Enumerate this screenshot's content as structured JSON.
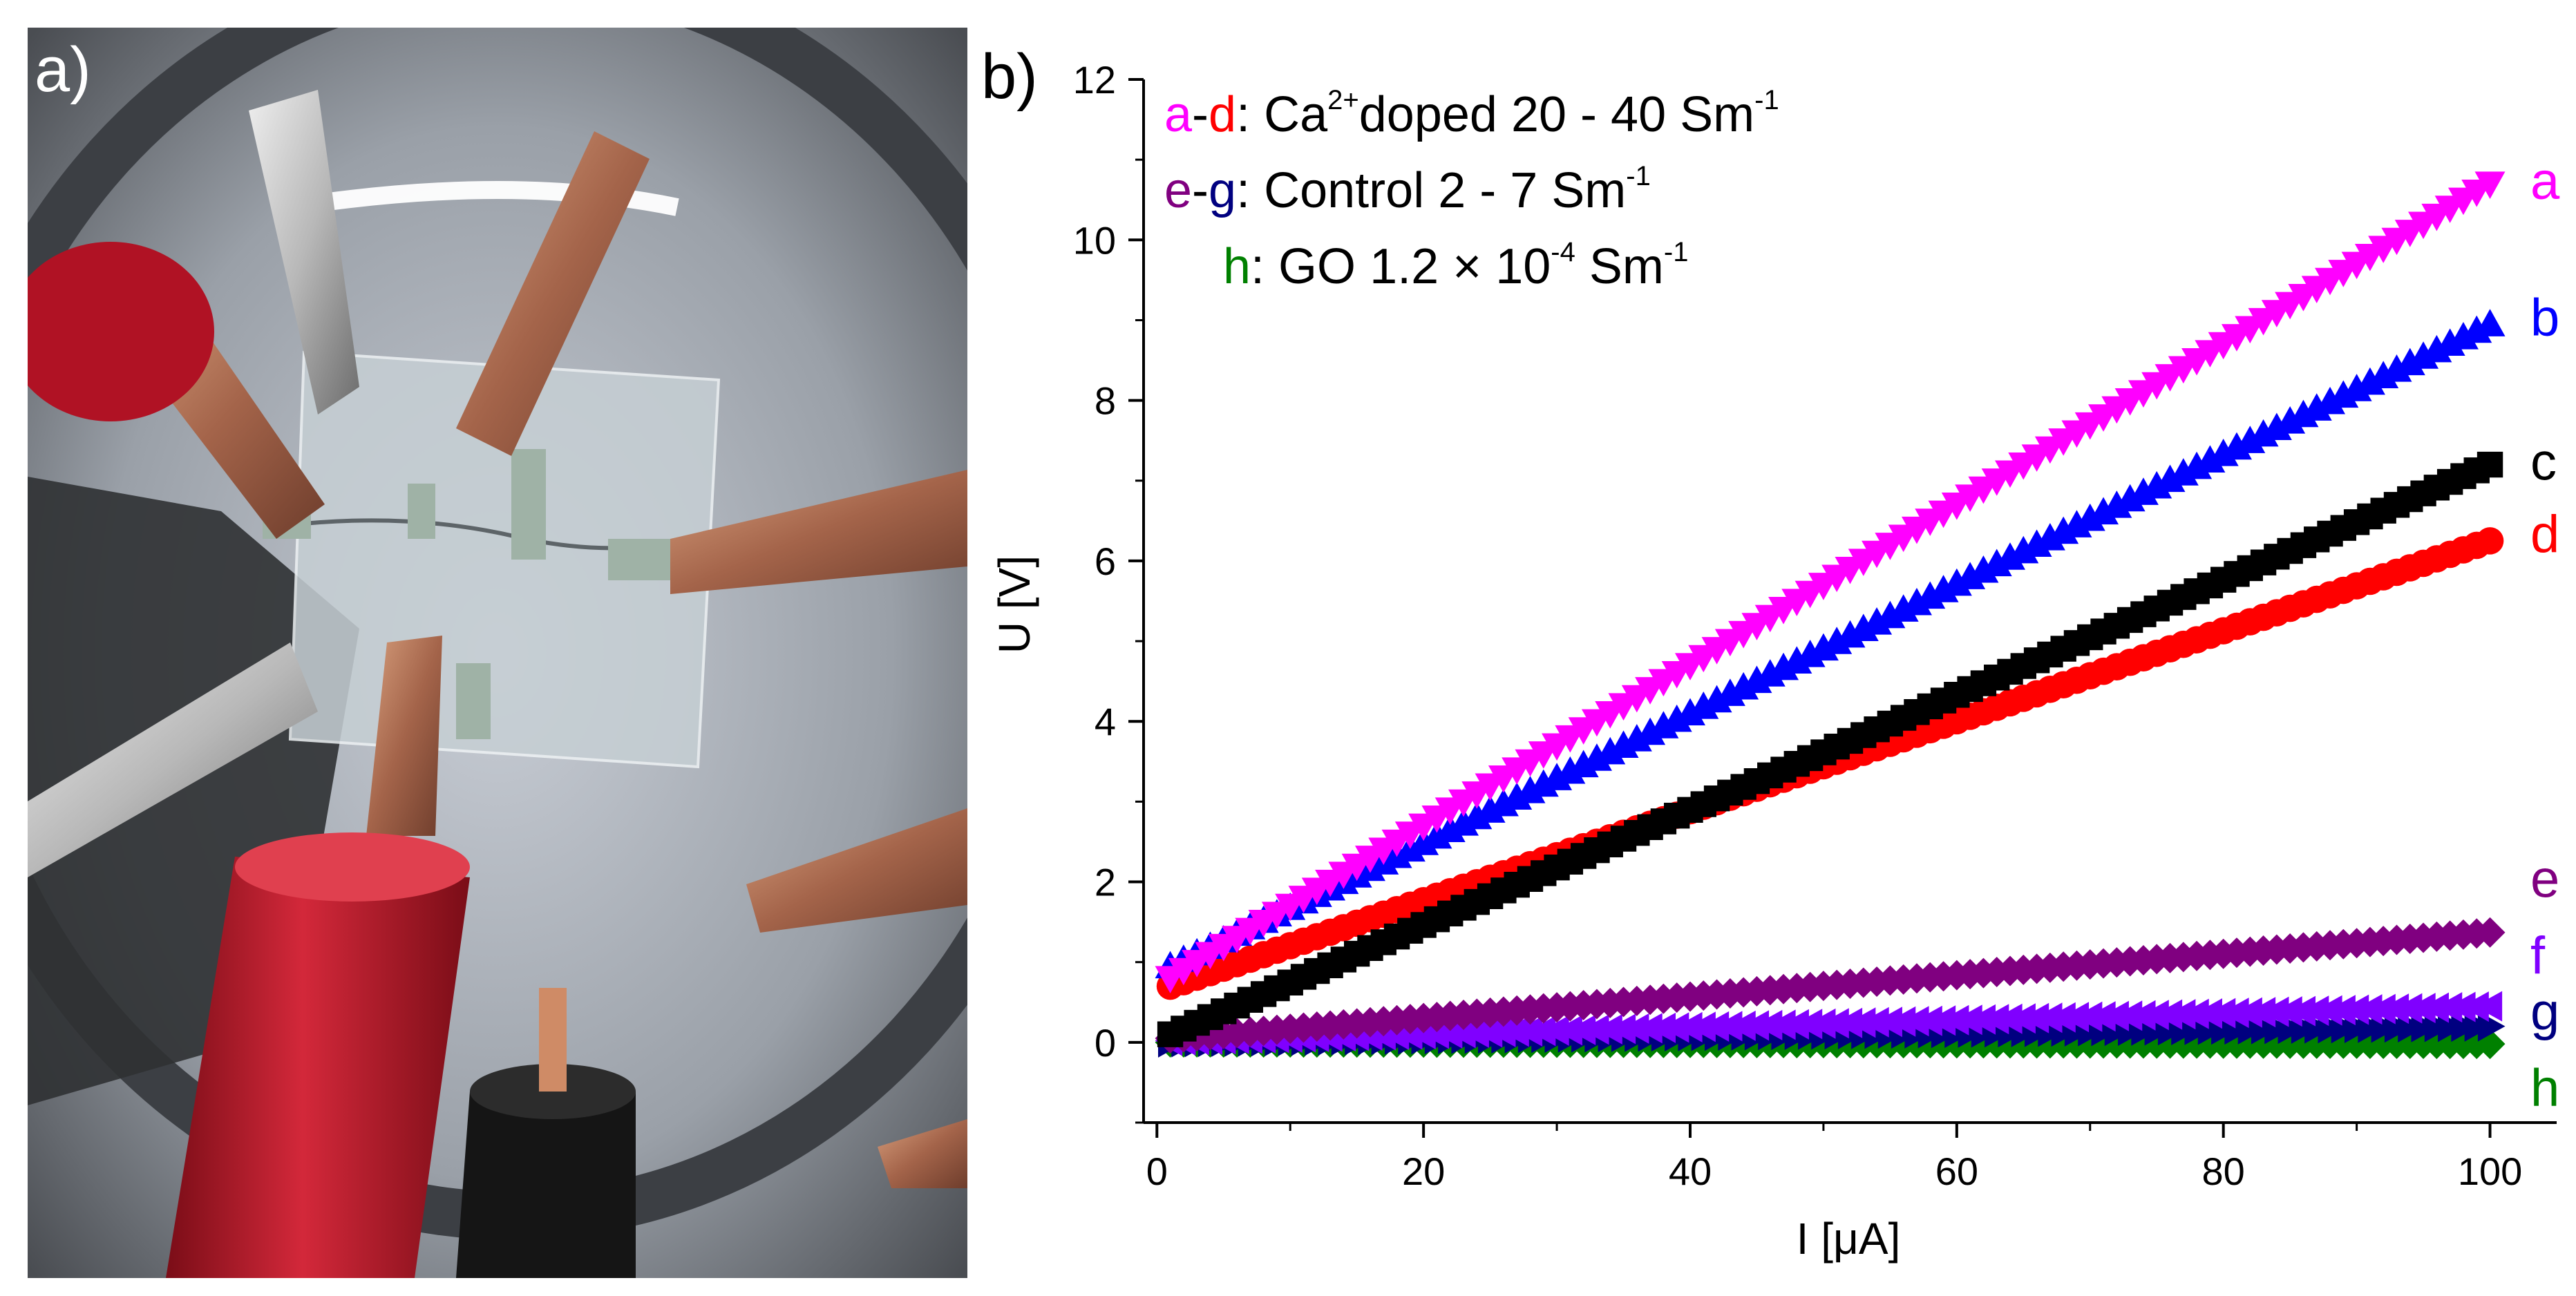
{
  "panel_a": {
    "label": "a)"
  },
  "panel_b": {
    "label": "b)"
  },
  "chart_data": {
    "type": "scatter",
    "title": "",
    "xlabel": "I [μA]",
    "ylabel": "U [V]",
    "xlim": [
      -1,
      105
    ],
    "ylim": [
      -1,
      12
    ],
    "xticks": [
      0,
      20,
      40,
      60,
      80,
      100
    ],
    "yticks": [
      0,
      2,
      4,
      6,
      8,
      10,
      12
    ],
    "grid": false,
    "legend_position": "top-left",
    "legend": [
      {
        "key": "a-d",
        "key_parts": [
          {
            "t": "a",
            "color": "#ff00ff"
          },
          {
            "t": "-",
            "color": "#000000"
          },
          {
            "t": "d",
            "color": "#ff0000"
          }
        ],
        "text": ": Ca",
        "sup": "2+",
        "text2": "doped 20 - 40 Sm",
        "unit_sup": "-1"
      },
      {
        "key": "e-g",
        "key_parts": [
          {
            "t": "e",
            "color": "#800080"
          },
          {
            "t": "-",
            "color": "#000000"
          },
          {
            "t": "g",
            "color": "#000080"
          }
        ],
        "text": ": Control  2 - 7 Sm",
        "unit_sup": "-1"
      },
      {
        "key": "h",
        "key_parts": [
          {
            "t": "h",
            "color": "#008000"
          }
        ],
        "text": ": GO  1.2 × 10",
        "sup": "-4",
        "text2": " Sm",
        "unit_sup": "-1"
      }
    ],
    "series": [
      {
        "name": "a",
        "color": "#ff00ff",
        "marker": "triangle-down",
        "x": [
          1,
          100
        ],
        "values": [
          0.8,
          10.7
        ]
      },
      {
        "name": "b",
        "color": "#0000ff",
        "marker": "triangle-up",
        "x": [
          1,
          100
        ],
        "values": [
          0.95,
          8.95
        ]
      },
      {
        "name": "c",
        "color": "#000000",
        "marker": "square",
        "x": [
          1,
          100
        ],
        "values": [
          0.1,
          7.2
        ]
      },
      {
        "name": "d",
        "color": "#ff0000",
        "marker": "circle",
        "x": [
          1,
          100
        ],
        "values": [
          0.7,
          6.25
        ]
      },
      {
        "name": "e",
        "color": "#800080",
        "marker": "diamond",
        "x": [
          1,
          100
        ],
        "values": [
          0.05,
          1.37
        ]
      },
      {
        "name": "f",
        "color": "#8000ff",
        "marker": "triangle-left",
        "x": [
          1,
          100
        ],
        "values": [
          0.02,
          0.45
        ]
      },
      {
        "name": "g",
        "color": "#000080",
        "marker": "triangle-right",
        "x": [
          1,
          100
        ],
        "values": [
          0.0,
          0.2
        ]
      },
      {
        "name": "h",
        "color": "#008000",
        "marker": "diamond",
        "x": [
          1,
          100
        ],
        "values": [
          0.0,
          -0.02
        ]
      }
    ]
  }
}
